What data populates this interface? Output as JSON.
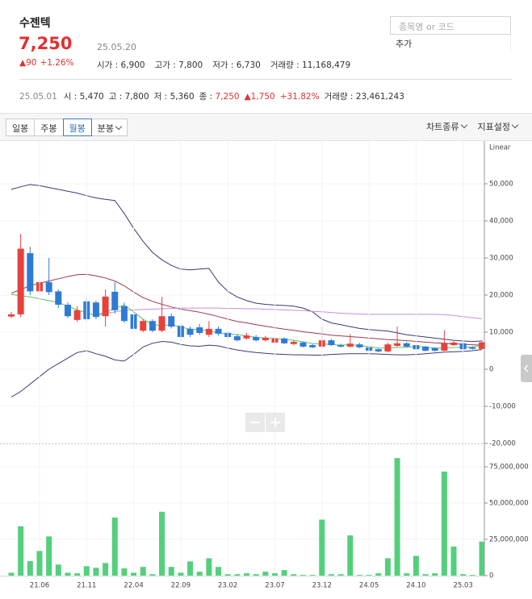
{
  "header": {
    "name": "수젠텍",
    "price": "7,250",
    "date": "25.05.20",
    "change": "▲90",
    "change_pct": "+1.26%"
  },
  "stats": [
    {
      "label": "시가 :",
      "value": "6,900"
    },
    {
      "label": "고가 :",
      "value": "7,800"
    },
    {
      "label": "저가 :",
      "value": "6,730"
    },
    {
      "label": "거래량 :",
      "value": "11,168,479"
    }
  ],
  "search": {
    "placeholder": "종목명 or 코드",
    "button": "추가"
  },
  "candle_info": {
    "date": "25.05.01",
    "items": [
      {
        "label": "시 :",
        "value": "5,470"
      },
      {
        "label": "고 :",
        "value": "7,800"
      },
      {
        "label": "저 :",
        "value": "5,360"
      },
      {
        "label": "종 :",
        "value": "7,250",
        "color": "#e0312f"
      },
      {
        "value": "▲1,750",
        "color": "#e0312f"
      },
      {
        "value": "+31.82%",
        "color": "#e0312f"
      },
      {
        "label": "거래량 :",
        "value": "23,461,243"
      }
    ]
  },
  "toolbar": {
    "periods": [
      "일봉",
      "주봉",
      "월봉",
      "분봉"
    ],
    "selected": 2,
    "menus": [
      "차트종류",
      "지표설정"
    ]
  },
  "chart_data": [
    {
      "type": "candlestick",
      "scale_label": "Linear",
      "up_color": "#e8413c",
      "down_color": "#2e7bd6",
      "open": [
        14200,
        14800,
        31300,
        21000,
        23500,
        21000,
        17400,
        13300,
        18300,
        18000,
        14300,
        20900,
        17000,
        14800,
        10400,
        13000,
        10400,
        14300,
        11700,
        10900,
        11300,
        9300,
        10900,
        9800,
        8900,
        8300,
        8700,
        7800,
        7200,
        8300,
        6800,
        7200,
        6500,
        6100,
        7800,
        6500,
        6100,
        6700,
        5900,
        5400,
        4800,
        6300,
        7000,
        6500,
        6100,
        5700,
        5000,
        6500,
        7000,
        5900,
        5470
      ],
      "high": [
        15500,
        36500,
        33000,
        24500,
        30000,
        21500,
        18000,
        17000,
        19500,
        18500,
        21500,
        23500,
        18000,
        15500,
        13500,
        13500,
        19500,
        15000,
        12500,
        11500,
        12200,
        13000,
        11500,
        10200,
        9500,
        9800,
        9200,
        9000,
        8800,
        8600,
        7900,
        7500,
        6800,
        11500,
        8200,
        6900,
        9500,
        7100,
        6200,
        5600,
        7200,
        11500,
        7300,
        6800,
        6300,
        5900,
        10500,
        7600,
        7300,
        6200,
        7800
      ],
      "low": [
        13800,
        14000,
        20000,
        20500,
        20000,
        16500,
        13800,
        12800,
        13000,
        13500,
        11500,
        15000,
        12500,
        10500,
        10000,
        10000,
        10000,
        11000,
        8200,
        8700,
        9300,
        8700,
        9100,
        8300,
        7500,
        8000,
        7500,
        7500,
        7000,
        6800,
        6500,
        5900,
        5700,
        5800,
        6300,
        5900,
        5900,
        5700,
        4800,
        4600,
        4600,
        6100,
        5900,
        5200,
        4800,
        4800,
        4900,
        6300,
        5200,
        5300,
        5360
      ],
      "close": [
        14800,
        32500,
        21000,
        23500,
        20800,
        17400,
        14300,
        15900,
        13500,
        14100,
        19600,
        15900,
        13000,
        10900,
        13000,
        10400,
        14300,
        11500,
        8700,
        9300,
        9800,
        10900,
        9600,
        8700,
        7800,
        9100,
        7800,
        8500,
        8300,
        7000,
        7400,
        6100,
        5900,
        7800,
        6500,
        6100,
        6900,
        5900,
        5000,
        4800,
        6700,
        7000,
        6100,
        5400,
        5000,
        5000,
        7000,
        7200,
        5400,
        5500,
        7250
      ],
      "series": [
        {
          "color": "#3a3a78",
          "values": [
            48500,
            49200,
            49800,
            49500,
            49000,
            48500,
            48000,
            47500,
            46800,
            46200,
            45800,
            45500,
            42000,
            38000,
            34500,
            31500,
            29500,
            28000,
            27000,
            26800,
            27000,
            27200,
            23500,
            21000,
            19500,
            18500,
            17800,
            17500,
            17300,
            17200,
            17000,
            16500,
            15500,
            13500,
            12500,
            12000,
            11500,
            11000,
            10700,
            10500,
            10300,
            9800,
            9300,
            9000,
            8700,
            8400,
            8100,
            7800,
            7600,
            7500,
            7600
          ]
        },
        {
          "color": "#9a3a4e",
          "values": [
            20500,
            21500,
            22500,
            23200,
            23800,
            24400,
            25000,
            25500,
            25600,
            25200,
            24600,
            23800,
            22500,
            20800,
            19300,
            18300,
            17500,
            16800,
            16200,
            15800,
            15400,
            14800,
            14200,
            13500,
            12900,
            12500,
            12000,
            11600,
            11200,
            10800,
            10500,
            10100,
            9800,
            9500,
            9200,
            9000,
            8800,
            8600,
            8400,
            8200,
            8000,
            7900,
            7700,
            7500,
            7300,
            7100,
            7000,
            6900,
            6700,
            6600,
            6500
          ]
        },
        {
          "color": "#3a3a78",
          "values": [
            -7500,
            -6000,
            -4000,
            -2000,
            0,
            1500,
            3000,
            4500,
            5000,
            4200,
            3500,
            2500,
            2200,
            4000,
            6000,
            7000,
            7500,
            7300,
            6700,
            6300,
            6200,
            6500,
            6300,
            5700,
            5200,
            4800,
            4500,
            4300,
            4100,
            4000,
            3900,
            3900,
            3800,
            3800,
            4000,
            4100,
            4200,
            4200,
            4200,
            4100,
            4000,
            3900,
            3900,
            4000,
            4200,
            4400,
            4600,
            4700,
            4800,
            5000,
            5300
          ]
        },
        {
          "color": "#c48fe0",
          "values": [
            null,
            null,
            null,
            null,
            null,
            null,
            null,
            null,
            null,
            14500,
            15000,
            15500,
            15800,
            16000,
            16100,
            16200,
            16300,
            16400,
            16500,
            16500,
            16500,
            16500,
            16500,
            16400,
            16400,
            16300,
            16300,
            16200,
            16100,
            16000,
            15900,
            15800,
            15600,
            15500,
            15300,
            15100,
            15000,
            14900,
            14800,
            14800,
            14800,
            14800,
            14800,
            14800,
            14800,
            14800,
            14700,
            14500,
            14200,
            13900,
            13600
          ]
        },
        {
          "color": "#5ec26a",
          "values": [
            20200,
            19800,
            19500,
            19000,
            18500,
            18000,
            17000,
            16000,
            15200,
            14600,
            15300,
            16500,
            17300,
            15500,
            13500,
            12000,
            11800,
            12000,
            11400,
            10800,
            10700,
            10400,
            9700,
            9600,
            9300,
            9000,
            8600,
            8400,
            8300,
            8100,
            7800,
            7400,
            6900,
            6800,
            6700,
            6500,
            6600,
            6400,
            6100,
            5700,
            5700,
            5900,
            5900,
            6200,
            6000,
            5700,
            5700,
            5900,
            5900,
            6000,
            6500
          ]
        }
      ],
      "ylim": [
        -20000,
        60000
      ],
      "yticks": [
        {
          "value": -20000,
          "label": "-20,000"
        },
        {
          "value": -10000,
          "label": "-10,000"
        },
        0,
        {
          "value": 10000,
          "label": "10,000"
        },
        {
          "value": 20000,
          "label": "20,000"
        },
        {
          "value": 30000,
          "label": "30,000"
        },
        {
          "value": 40000,
          "label": "40,000"
        },
        {
          "value": 50000,
          "label": "50,000"
        }
      ]
    },
    {
      "type": "bar",
      "color": "#52d07b",
      "categories": [
        null,
        null,
        null,
        "21.06",
        null,
        null,
        null,
        null,
        "21.11",
        null,
        null,
        null,
        null,
        "22.04",
        null,
        null,
        null,
        null,
        "22.09",
        null,
        null,
        null,
        null,
        "23.02",
        null,
        null,
        null,
        null,
        "23.07",
        null,
        null,
        null,
        null,
        "23.12",
        null,
        null,
        null,
        null,
        "24.05",
        null,
        null,
        null,
        null,
        "24.10",
        null,
        null,
        null,
        null,
        "25.03",
        null,
        null
      ],
      "values": [
        2000000,
        34000000,
        10000000,
        17000000,
        27000000,
        7600000,
        2000000,
        1600000,
        6500000,
        5400000,
        8700000,
        40000000,
        5000000,
        2000000,
        6000000,
        1000000,
        44000000,
        6000000,
        2000000,
        9800000,
        2700000,
        12000000,
        6000000,
        1000000,
        1000000,
        1600000,
        1000000,
        2700000,
        1600000,
        3800000,
        1000000,
        500000,
        500000,
        38600000,
        1000000,
        1000000,
        27700000,
        500000,
        500000,
        1600000,
        12000000,
        81000000,
        1600000,
        13600000,
        1000000,
        1600000,
        71700000,
        20000000,
        1000000,
        500000,
        23461243
      ],
      "ylim": [
        0,
        90000000
      ],
      "yticks": [
        0,
        {
          "value": 25000000,
          "label": "25,000,000"
        },
        {
          "value": 50000000,
          "label": "50,000,000"
        },
        {
          "value": 75000000,
          "label": "75,000,000"
        }
      ]
    }
  ]
}
